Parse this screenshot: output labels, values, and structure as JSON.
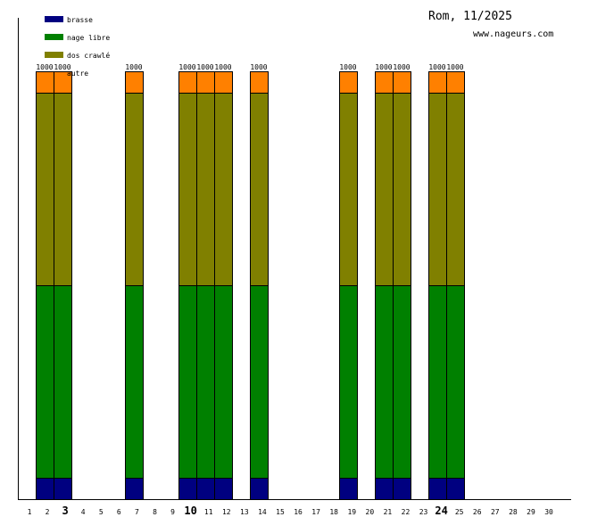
{
  "header": {
    "title": "Rom, 11/2025",
    "site": "www.nageurs.com"
  },
  "chart_data": {
    "type": "bar",
    "stacked": true,
    "title": "Rom, 11/2025",
    "x": [
      1,
      2,
      3,
      4,
      5,
      6,
      7,
      8,
      9,
      10,
      11,
      12,
      13,
      14,
      15,
      16,
      17,
      18,
      19,
      20,
      21,
      22,
      23,
      24,
      25,
      26,
      27,
      28,
      29,
      30
    ],
    "x_tick_labels": [
      "1",
      "2",
      "3",
      "4",
      "5",
      "6",
      "7",
      "8",
      "9",
      "10",
      "11",
      "12",
      "13",
      "14",
      "15",
      "16",
      "17",
      "18",
      "19",
      "20",
      "21",
      "22",
      "23",
      "24",
      "25",
      "26",
      "27",
      "28",
      "29",
      "30"
    ],
    "bold_ticks": [
      3,
      10,
      24
    ],
    "ylim": [
      0,
      1000
    ],
    "series": [
      {
        "name": "brasse",
        "color": "#000080",
        "values": [
          0,
          50,
          50,
          0,
          0,
          0,
          50,
          0,
          0,
          50,
          50,
          50,
          0,
          50,
          0,
          0,
          0,
          0,
          50,
          0,
          50,
          50,
          0,
          50,
          50,
          0,
          0,
          0,
          0,
          0
        ]
      },
      {
        "name": "nage libre",
        "color": "#008000",
        "values": [
          0,
          450,
          450,
          0,
          0,
          0,
          450,
          0,
          0,
          450,
          450,
          450,
          0,
          450,
          0,
          0,
          0,
          0,
          450,
          0,
          450,
          450,
          0,
          450,
          450,
          0,
          0,
          0,
          0,
          0
        ]
      },
      {
        "name": "dos crawlé",
        "color": "#808000",
        "values": [
          0,
          450,
          450,
          0,
          0,
          0,
          450,
          0,
          0,
          450,
          450,
          450,
          0,
          450,
          0,
          0,
          0,
          0,
          450,
          0,
          450,
          450,
          0,
          450,
          450,
          0,
          0,
          0,
          0,
          0
        ]
      },
      {
        "name": "autre",
        "color": "#ff8000",
        "values": [
          0,
          50,
          50,
          0,
          0,
          0,
          50,
          0,
          0,
          50,
          50,
          50,
          0,
          50,
          0,
          0,
          0,
          0,
          50,
          0,
          50,
          50,
          0,
          50,
          50,
          0,
          0,
          0,
          0,
          0
        ]
      }
    ],
    "totals": [
      "",
      "1000",
      "1000",
      "",
      "",
      "",
      "1000",
      "",
      "",
      "1000",
      "1000",
      "1000",
      "",
      "1000",
      "",
      "",
      "",
      "",
      "1000",
      "",
      "1000",
      "1000",
      "",
      "1000",
      "1000",
      "",
      "",
      "",
      "",
      ""
    ],
    "legend": "top-left"
  }
}
